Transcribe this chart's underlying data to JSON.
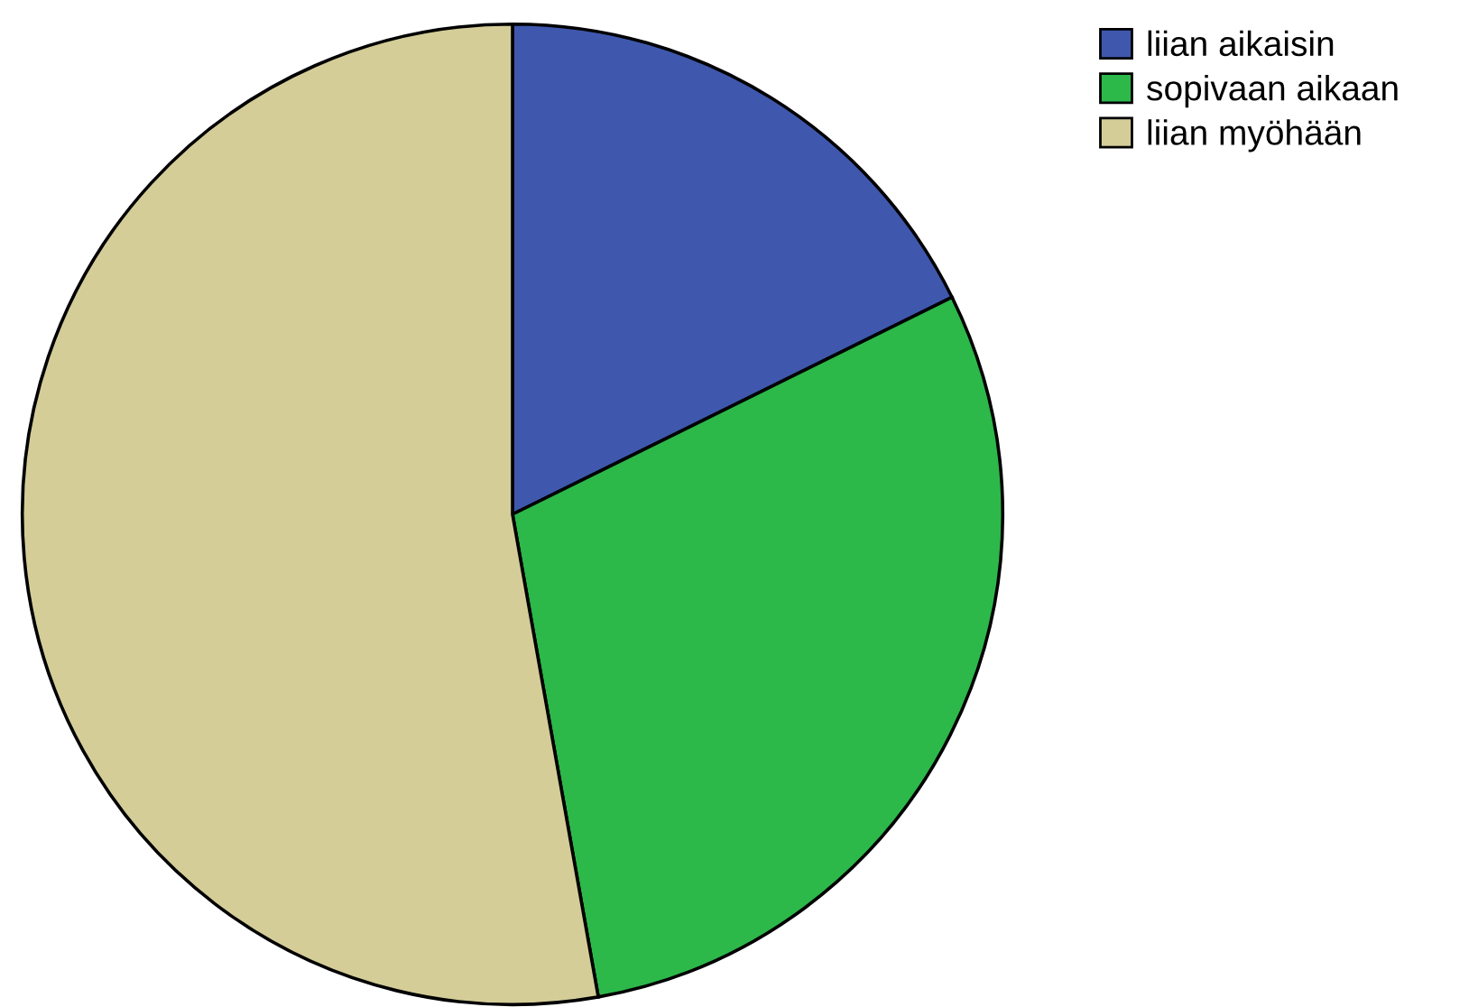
{
  "chart_data": {
    "type": "pie",
    "categories": [
      "liian aikaisin",
      "sopivaan aikaan",
      "liian myöhään"
    ],
    "values": [
      17.7,
      29.5,
      52.8
    ],
    "colors": [
      "#3f58ad",
      "#2db84a",
      "#d4cd98"
    ],
    "legend": "top right"
  }
}
